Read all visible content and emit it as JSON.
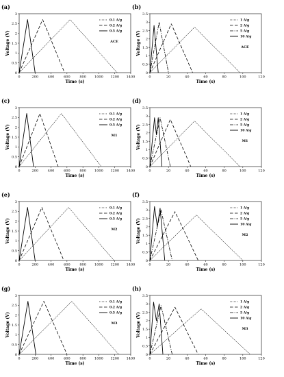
{
  "chart_data": [
    {
      "type": "line",
      "panel_label": "(a)",
      "annotation": "ACE",
      "xlabel": "Time (s)",
      "ylabel": "Voltage (V)",
      "xlim": [
        0,
        1400
      ],
      "ylim": [
        0,
        3
      ],
      "xticks": [
        "0",
        "200",
        "400",
        "600",
        "800",
        "1000",
        "1200",
        "1400"
      ],
      "yticks": [
        "0",
        "0.5",
        "1",
        "1.5",
        "2",
        "2.5",
        "3"
      ],
      "grid": false,
      "legend_position": "top-right",
      "series": [
        {
          "name": "0.1 A/g",
          "style": "dotted",
          "x": [
            0,
            640,
            1230
          ],
          "y": [
            0,
            2.7,
            0
          ]
        },
        {
          "name": "0.2 A/g",
          "style": "dashed",
          "x": [
            0,
            295,
            570
          ],
          "y": [
            0,
            2.7,
            0
          ]
        },
        {
          "name": "0.5 A/g",
          "style": "solid",
          "x": [
            0,
            105,
            200
          ],
          "y": [
            0,
            2.7,
            0
          ]
        }
      ]
    },
    {
      "type": "line",
      "panel_label": "(b)",
      "annotation": "ACE",
      "xlabel": "Time (s)",
      "ylabel": "Voltage (V)",
      "xlim": [
        0,
        120
      ],
      "ylim": [
        0,
        3.5
      ],
      "xticks": [
        "0",
        "20",
        "40",
        "60",
        "80",
        "100",
        "120"
      ],
      "yticks": [
        "0",
        "0.5",
        "1",
        "1.5",
        "2",
        "2.5",
        "3",
        "3.5"
      ],
      "grid": false,
      "legend_position": "top-right",
      "series": [
        {
          "name": "1 A/g",
          "style": "dotted",
          "x": [
            0,
            48,
            97
          ],
          "y": [
            0,
            2.7,
            0
          ]
        },
        {
          "name": "2 A/g",
          "style": "dashed",
          "x": [
            0,
            23,
            46
          ],
          "y": [
            0,
            2.9,
            0
          ]
        },
        {
          "name": "5 A/g",
          "style": "dashdot",
          "x": [
            0,
            10,
            20
          ],
          "y": [
            0,
            3.0,
            0
          ]
        },
        {
          "name": "10 A/g",
          "style": "solid",
          "x": [
            0,
            4.5,
            9
          ],
          "y": [
            0,
            2.8,
            0
          ]
        }
      ]
    },
    {
      "type": "line",
      "panel_label": "(c)",
      "annotation": "M1",
      "xlabel": "Time (s)",
      "ylabel": "Voltage (V)",
      "xlim": [
        0,
        1400
      ],
      "ylim": [
        0,
        3
      ],
      "xticks": [
        "0",
        "200",
        "400",
        "600",
        "800",
        "1000",
        "1200",
        "1400"
      ],
      "yticks": [
        "0",
        "0.5",
        "1",
        "1.5",
        "2",
        "2.5",
        "3"
      ],
      "grid": false,
      "legend_position": "top-right",
      "series": [
        {
          "name": "0.1 A/g",
          "style": "dotted",
          "x": [
            0,
            530,
            1030
          ],
          "y": [
            0,
            2.7,
            0
          ]
        },
        {
          "name": "0.2 A/g",
          "style": "dashed",
          "x": [
            0,
            260,
            490
          ],
          "y": [
            0,
            2.7,
            0
          ]
        },
        {
          "name": "0.5 A/g",
          "style": "solid",
          "x": [
            0,
            95,
            180
          ],
          "y": [
            0,
            2.7,
            0
          ]
        }
      ]
    },
    {
      "type": "line",
      "panel_label": "(d)",
      "annotation": "M1",
      "xlabel": "Time (s)",
      "ylabel": "Voltage (V)",
      "xlim": [
        0,
        120
      ],
      "ylim": [
        0,
        3.5
      ],
      "xticks": [
        "0",
        "20",
        "40",
        "60",
        "80",
        "100",
        "120"
      ],
      "yticks": [
        "0",
        "0.5",
        "1",
        "1.5",
        "2",
        "2.5",
        "3",
        "3.5"
      ],
      "grid": false,
      "legend_position": "top-right",
      "series": [
        {
          "name": "1 A/g",
          "style": "dotted",
          "x": [
            0,
            48,
            97
          ],
          "y": [
            0,
            2.7,
            0
          ]
        },
        {
          "name": "2 A/g",
          "style": "dashed",
          "x": [
            0,
            22,
            44
          ],
          "y": [
            0,
            2.8,
            0
          ]
        },
        {
          "name": "5 A/g",
          "style": "dashdot",
          "x": [
            0,
            11,
            22
          ],
          "y": [
            0,
            2.9,
            0
          ]
        },
        {
          "name": "10 A/g",
          "style": "solid",
          "x": [
            0,
            5,
            7,
            9,
            13
          ],
          "y": [
            0,
            2.9,
            1.9,
            2.9,
            0
          ]
        }
      ]
    },
    {
      "type": "line",
      "panel_label": "(e)",
      "annotation": "M2",
      "xlabel": "Time (s)",
      "ylabel": "Voltage (V)",
      "xlim": [
        0,
        1400
      ],
      "ylim": [
        0,
        3
      ],
      "xticks": [
        "0",
        "200",
        "400",
        "600",
        "800",
        "1000",
        "1200",
        "1400"
      ],
      "yticks": [
        "0",
        "0.5",
        "1",
        "1.5",
        "2",
        "2.5",
        "3"
      ],
      "grid": false,
      "legend_position": "top-right",
      "series": [
        {
          "name": "0.1 A/g",
          "style": "dotted",
          "x": [
            0,
            620,
            1190
          ],
          "y": [
            0,
            2.7,
            0
          ]
        },
        {
          "name": "0.2 A/g",
          "style": "dashed",
          "x": [
            0,
            285,
            560
          ],
          "y": [
            0,
            2.7,
            0
          ]
        },
        {
          "name": "0.5 A/g",
          "style": "solid",
          "x": [
            0,
            105,
            200
          ],
          "y": [
            0,
            2.7,
            0
          ]
        }
      ]
    },
    {
      "type": "line",
      "panel_label": "(f)",
      "annotation": "M2",
      "xlabel": "Time (s)",
      "ylabel": "Voltage (V)",
      "xlim": [
        0,
        120
      ],
      "ylim": [
        0,
        3.5
      ],
      "xticks": [
        "0",
        "20",
        "40",
        "60",
        "80",
        "100",
        "120"
      ],
      "yticks": [
        "0",
        "0.5",
        "1",
        "1.5",
        "2",
        "2.5",
        "3",
        "3.5"
      ],
      "grid": false,
      "legend_position": "top-right",
      "series": [
        {
          "name": "1 A/g",
          "style": "dotted",
          "x": [
            0,
            50,
            100
          ],
          "y": [
            0,
            2.7,
            0
          ]
        },
        {
          "name": "2 A/g",
          "style": "dashed",
          "x": [
            0,
            27,
            52
          ],
          "y": [
            0,
            2.9,
            0
          ]
        },
        {
          "name": "5 A/g",
          "style": "dashdot",
          "x": [
            0,
            12,
            24
          ],
          "y": [
            0,
            3.0,
            0
          ]
        },
        {
          "name": "10 A/g",
          "style": "solid",
          "x": [
            0,
            5,
            8,
            11,
            16
          ],
          "y": [
            0,
            3.2,
            2.0,
            3.1,
            0
          ]
        }
      ]
    },
    {
      "type": "line",
      "panel_label": "(g)",
      "annotation": "M3",
      "xlabel": "Time (s)",
      "ylabel": "Voltage (V)",
      "xlim": [
        0,
        1400
      ],
      "ylim": [
        0,
        3
      ],
      "xticks": [
        "0",
        "200",
        "400",
        "600",
        "800",
        "1000",
        "1200",
        "1400"
      ],
      "yticks": [
        "0",
        "0.5",
        "1",
        "1.5",
        "2",
        "2.5",
        "3"
      ],
      "grid": false,
      "legend_position": "top-right",
      "series": [
        {
          "name": "0.1 A/g",
          "style": "dotted",
          "x": [
            0,
            660,
            1250
          ],
          "y": [
            0,
            2.7,
            0
          ]
        },
        {
          "name": "0.2 A/g",
          "style": "dashed",
          "x": [
            0,
            310,
            600
          ],
          "y": [
            0,
            2.7,
            0
          ]
        },
        {
          "name": "0.5 A/g",
          "style": "solid",
          "x": [
            0,
            110,
            210
          ],
          "y": [
            0,
            2.7,
            0
          ]
        }
      ]
    },
    {
      "type": "line",
      "panel_label": "(h)",
      "annotation": "M3",
      "xlabel": "Time (s)",
      "ylabel": "Voltage (V)",
      "xlim": [
        0,
        120
      ],
      "ylim": [
        0,
        3.5
      ],
      "xticks": [
        "0",
        "20",
        "40",
        "60",
        "80",
        "100",
        "120"
      ],
      "yticks": [
        "0",
        "0.5",
        "1",
        "1.5",
        "2",
        "2.5",
        "3",
        "3.5"
      ],
      "grid": false,
      "legend_position": "top-right",
      "series": [
        {
          "name": "1 A/g",
          "style": "dotted",
          "x": [
            0,
            55,
            108
          ],
          "y": [
            0,
            2.7,
            0
          ]
        },
        {
          "name": "2 A/g",
          "style": "dashed",
          "x": [
            0,
            27,
            52
          ],
          "y": [
            0,
            2.8,
            0
          ]
        },
        {
          "name": "5 A/g",
          "style": "dashdot",
          "x": [
            0,
            12,
            24
          ],
          "y": [
            0,
            2.9,
            0
          ]
        },
        {
          "name": "10 A/g",
          "style": "solid",
          "x": [
            0,
            4,
            7,
            10,
            14
          ],
          "y": [
            0,
            3.1,
            2.0,
            3.0,
            0
          ]
        }
      ]
    }
  ]
}
